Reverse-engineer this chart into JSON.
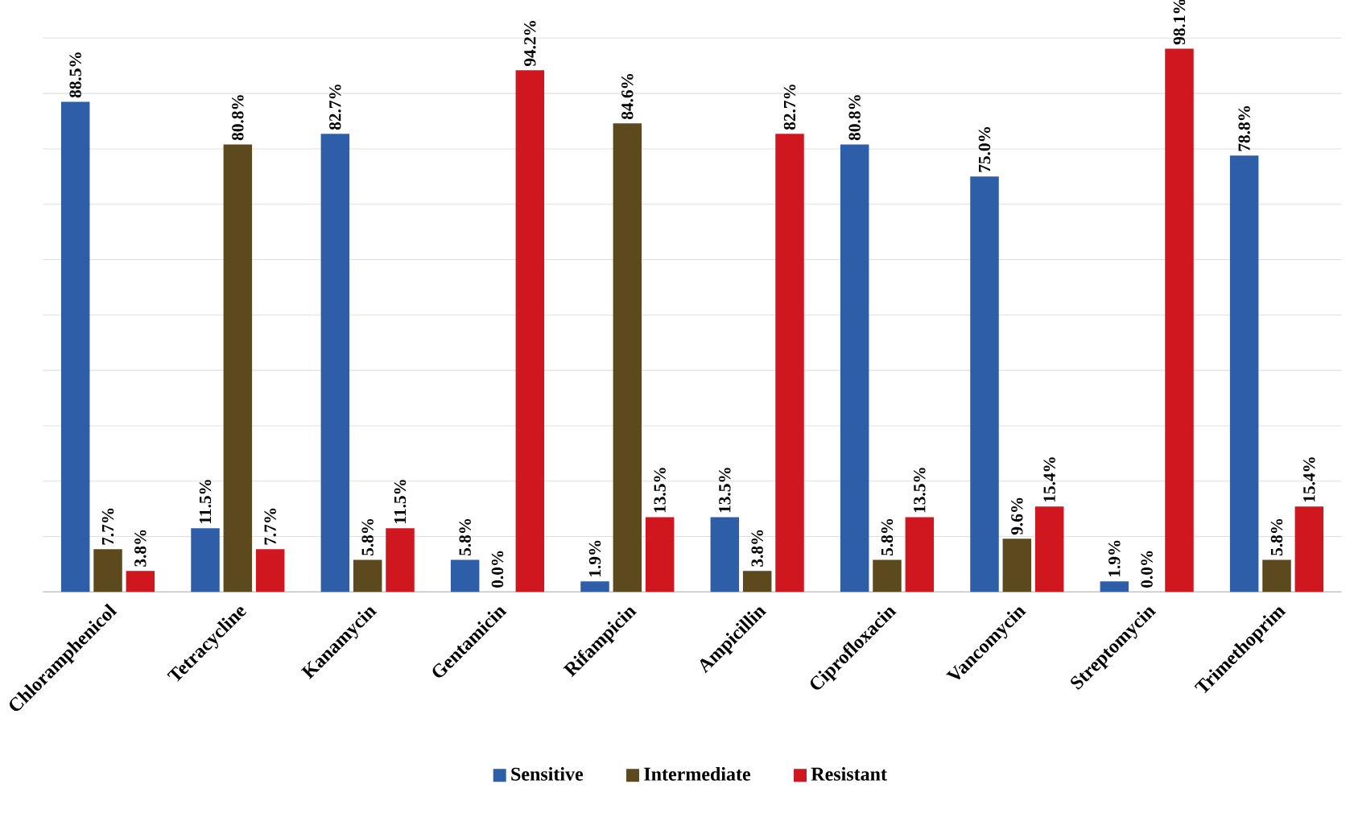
{
  "chart_data": {
    "type": "bar",
    "categories": [
      "Chloramphenicol",
      "Tetracycline",
      "Kanamycin",
      "Gentamicin",
      "Rifampicin",
      "Ampicillin",
      "Ciprofloxacin",
      "Vancomycin",
      "Streptomycin",
      "Trimethoprim"
    ],
    "series": [
      {
        "name": "Sensitive",
        "color": "#2e5ea8",
        "values": [
          88.5,
          11.5,
          82.7,
          5.8,
          1.9,
          13.5,
          80.8,
          75.0,
          1.9,
          78.8
        ],
        "value_labels": [
          "88.5%",
          "11.5%",
          "82.7%",
          "5.8%",
          "1.9%",
          "13.5%",
          "80.8%",
          "75.0%",
          "1.9%",
          "78.8%"
        ]
      },
      {
        "name": "Intermediate",
        "color": "#5c4a1e",
        "values": [
          7.7,
          80.8,
          5.8,
          0.0,
          84.6,
          3.8,
          5.8,
          9.6,
          0.0,
          5.8
        ],
        "value_labels": [
          "7.7%",
          "80.8%",
          "5.8%",
          "0.0%",
          "84.6%",
          "3.8%",
          "5.8%",
          "9.6%",
          "0.0%",
          "5.8%"
        ]
      },
      {
        "name": "Resistant",
        "color": "#d0161f",
        "values": [
          3.8,
          7.7,
          11.5,
          94.2,
          13.5,
          82.7,
          13.5,
          15.4,
          98.1,
          15.4
        ],
        "value_labels": [
          "3.8%",
          "7.7%",
          "11.5%",
          "94.2%",
          "13.5%",
          "82.7%",
          "13.5%",
          "15.4%",
          "98.1%",
          "15.4%"
        ]
      }
    ],
    "ylim": [
      0,
      100
    ],
    "yticks": [
      {
        "value": 0,
        "label": null
      },
      {
        "value": 10,
        "label": null
      },
      {
        "value": 20,
        "label": null
      },
      {
        "value": 30,
        "label": null
      },
      {
        "value": 40,
        "label": null
      },
      {
        "value": 50,
        "label": null
      },
      {
        "value": 60,
        "label": null
      },
      {
        "value": 70,
        "label": null
      },
      {
        "value": 80,
        "label": null
      },
      {
        "value": 90,
        "label": null
      },
      {
        "value": 100,
        "label": null
      }
    ],
    "tick_labels": "x",
    "grid": "y",
    "legend": "bottom"
  }
}
